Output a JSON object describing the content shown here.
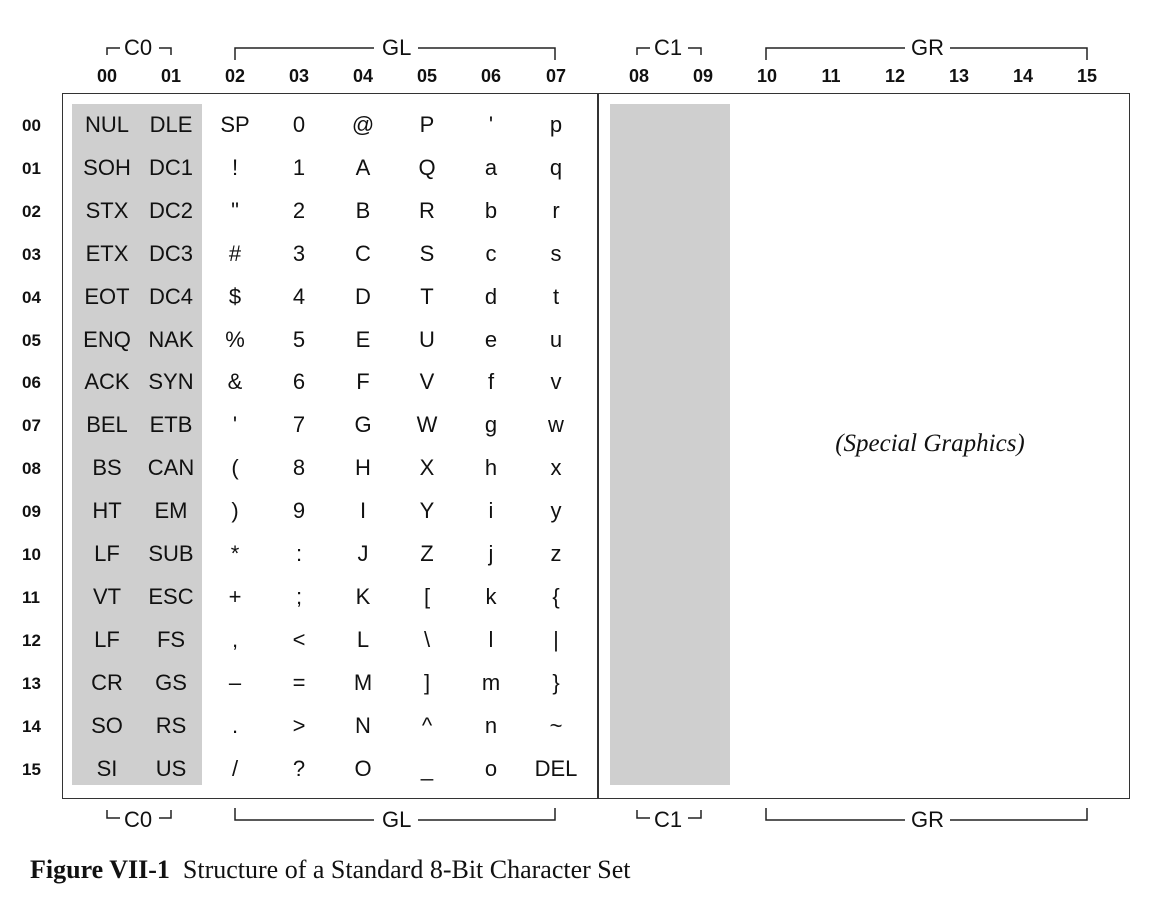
{
  "groups_top": {
    "c0": "C0",
    "gl": "GL",
    "c1": "C1",
    "gr": "GR"
  },
  "groups_bottom": {
    "c0": "C0",
    "gl": "GL",
    "c1": "C1",
    "gr": "GR"
  },
  "column_headers": [
    "00",
    "01",
    "02",
    "03",
    "04",
    "05",
    "06",
    "07",
    "08",
    "09",
    "10",
    "11",
    "12",
    "13",
    "14",
    "15"
  ],
  "row_headers": [
    "00",
    "01",
    "02",
    "03",
    "04",
    "05",
    "06",
    "07",
    "08",
    "09",
    "10",
    "11",
    "12",
    "13",
    "14",
    "15"
  ],
  "columns": [
    [
      "NUL",
      "SOH",
      "STX",
      "ETX",
      "EOT",
      "ENQ",
      "ACK",
      "BEL",
      "BS",
      "HT",
      "LF",
      "VT",
      "LF",
      "CR",
      "SO",
      "SI"
    ],
    [
      "DLE",
      "DC1",
      "DC2",
      "DC3",
      "DC4",
      "NAK",
      "SYN",
      "ETB",
      "CAN",
      "EM",
      "SUB",
      "ESC",
      "FS",
      "GS",
      "RS",
      "US"
    ],
    [
      "SP",
      "!",
      "\"",
      "#",
      "$",
      "%",
      "&",
      "'",
      "(",
      ")",
      "*",
      "+",
      ",",
      "–",
      ".",
      "/"
    ],
    [
      "0",
      "1",
      "2",
      "3",
      "4",
      "5",
      "6",
      "7",
      "8",
      "9",
      ":",
      ";",
      "<",
      "=",
      ">",
      "?"
    ],
    [
      "@",
      "A",
      "B",
      "C",
      "D",
      "E",
      "F",
      "G",
      "H",
      "I",
      "J",
      "K",
      "L",
      "M",
      "N",
      "O"
    ],
    [
      "P",
      "Q",
      "R",
      "S",
      "T",
      "U",
      "V",
      "W",
      "X",
      "Y",
      "Z",
      "[",
      "\\",
      "]",
      "^",
      "_"
    ],
    [
      "'",
      "a",
      "b",
      "c",
      "d",
      "e",
      "f",
      "g",
      "h",
      "i",
      "j",
      "k",
      "l",
      "m",
      "n",
      "o"
    ],
    [
      "p",
      "q",
      "r",
      "s",
      "t",
      "u",
      "v",
      "w",
      "x",
      "y",
      "z",
      "{",
      "|",
      "}",
      "~",
      "DEL"
    ]
  ],
  "special_graphics_label": "(Special Graphics)",
  "caption": {
    "label": "Figure VII-1",
    "text": "Structure of a Standard 8-Bit Character Set"
  },
  "colors": {
    "control_shade": "#cfcfcf",
    "frame": "#333333"
  }
}
